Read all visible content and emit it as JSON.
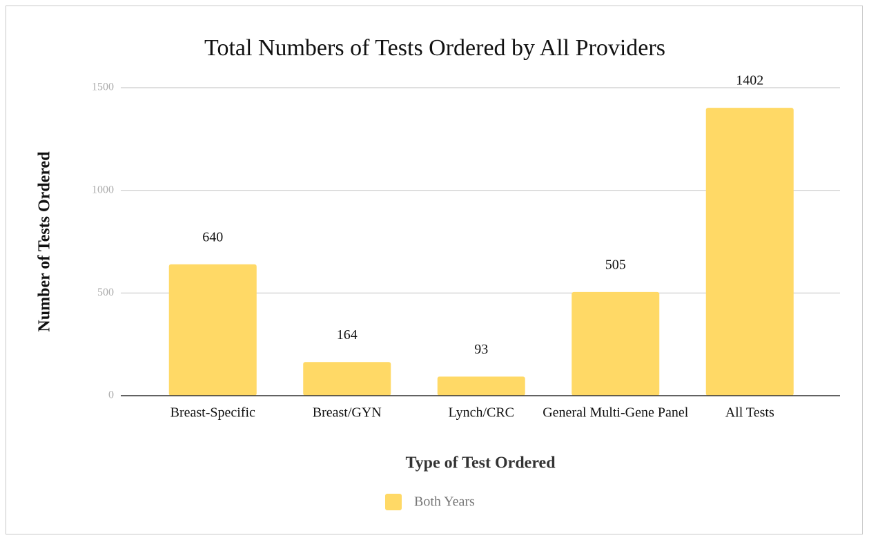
{
  "chart_data": {
    "type": "bar",
    "title": "Total Numbers of Tests Ordered by All Providers",
    "x_label": "Type of Test Ordered",
    "y_label": "Number of Tests Ordered",
    "categories": [
      "Breast-Specific",
      "Breast/GYN",
      "Lynch/CRC",
      "General Multi-Gene Panel",
      "All Tests"
    ],
    "series": [
      {
        "name": "Both Years",
        "color": "#ffd966",
        "values": [
          640,
          164,
          93,
          505,
          1402
        ]
      }
    ],
    "ylim": [
      0,
      1500
    ],
    "yticks": [
      0,
      500,
      1000,
      1500
    ],
    "grid": true,
    "legend": "bottom"
  }
}
